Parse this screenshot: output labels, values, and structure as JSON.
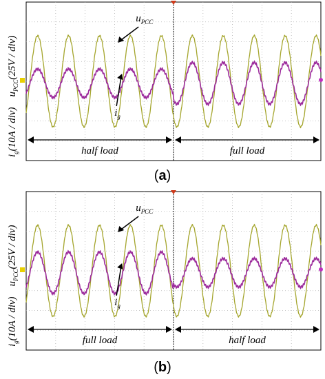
{
  "chart_data": [
    {
      "type": "line",
      "panel_label": "(a)",
      "panel_letter": "a",
      "ylabel_u": "u",
      "ylabel_u_sub": "PCC",
      "ylabel_u_rest": "(25V / div)",
      "ylabel_i": "i",
      "ylabel_i_sub": "g",
      "ylabel_i_rest": "(10A / div)",
      "ylabel_sep": "",
      "annotation_u": "u",
      "annotation_u_sub": "PCC",
      "annotation_i": "i",
      "annotation_i_sub": "g",
      "region_left_label": "half load",
      "region_right_label": "full load",
      "ylim": [
        -4,
        4
      ],
      "grid": true,
      "x": [
        0.0,
        0.5,
        1.0,
        1.5,
        2.0,
        2.5,
        3.0,
        3.5,
        4.0,
        4.5,
        5.0,
        5.5,
        6.0,
        6.5,
        7.0,
        7.5,
        8.0,
        8.5,
        9.0,
        9.5,
        10.0
      ],
      "series": [
        {
          "name": "u_PCC",
          "color": "#a4a52c",
          "amplitude_div": 2.3,
          "period_div": 1.05,
          "phase_deg": -90,
          "offset_div": 0.0,
          "values_left_amplitude": 2.3,
          "values_right_amplitude": 2.3
        },
        {
          "name": "i_g",
          "color": "#9c2b9c",
          "left_amplitude_div": 0.72,
          "right_amplitude_div": 1.05,
          "period_div": 1.05,
          "phase_deg": -90,
          "offset_div": -0.1
        }
      ],
      "transition_x_div": 5.0
    },
    {
      "type": "line",
      "panel_label": "(b)",
      "panel_letter": "b",
      "ylabel_u": "u",
      "ylabel_u_sub": "PCC",
      "ylabel_u_rest": "(25V / div)",
      "ylabel_i": "i",
      "ylabel_i_sub": "g",
      "ylabel_i_rest": "(10A / div)",
      "ylabel_sep": "",
      "annotation_u": "u",
      "annotation_u_sub": "PCC",
      "annotation_i": "i",
      "annotation_i_sub": "g",
      "region_left_label": "full load",
      "region_right_label": "half load",
      "ylim": [
        -4,
        4
      ],
      "grid": true,
      "series": [
        {
          "name": "u_PCC",
          "color": "#a4a52c",
          "amplitude_div": 2.3,
          "period_div": 1.05,
          "phase_deg": -90,
          "offset_div": 0.0
        },
        {
          "name": "i_g",
          "color": "#9c2b9c",
          "left_amplitude_div": 1.05,
          "right_amplitude_div": 0.72,
          "period_div": 1.05,
          "phase_deg": -90,
          "offset_div": -0.1
        }
      ],
      "transition_x_div": 5.0
    }
  ]
}
